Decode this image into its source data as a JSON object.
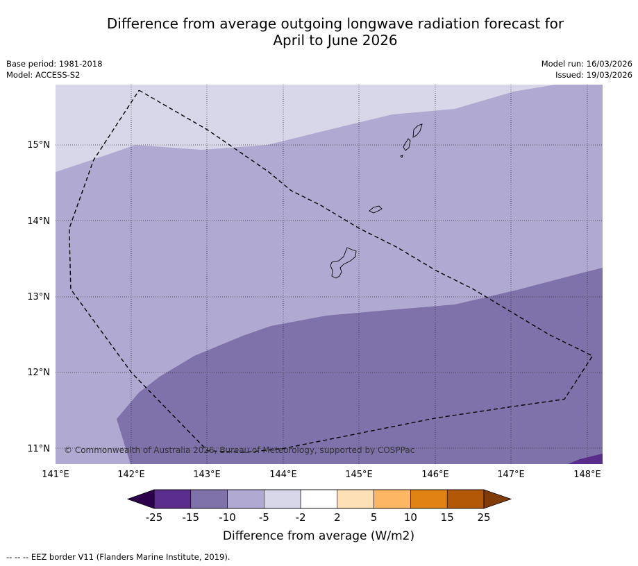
{
  "title": {
    "line1": "Difference from average outgoing longwave radiation forecast for",
    "line2": "April to June 2026"
  },
  "meta": {
    "base_period": "Base period: 1981-2018",
    "model": "Model: ACCESS-S2",
    "model_run": "Model run: 16/03/2026",
    "issued": "Issued: 19/03/2026"
  },
  "map": {
    "lon_labels": [
      "141°E",
      "142°E",
      "143°E",
      "144°E",
      "145°E",
      "146°E",
      "147°E",
      "148°E"
    ],
    "lat_labels": [
      "15°N",
      "14°N",
      "13°N",
      "12°N",
      "11°N"
    ],
    "lon_range": [
      141.0,
      148.2
    ],
    "lat_range": [
      10.8,
      15.8
    ],
    "copyright": "© Commonwealth of Australia 2026, Bureau of Meteorology, supported by COSPPac",
    "zones": [
      {
        "name": "-5 to -2",
        "color": "#d7d7e9"
      },
      {
        "name": "-10 to -5",
        "color": "#b0a9d1"
      },
      {
        "name": "-15 to -10",
        "color": "#7f71aa"
      },
      {
        "name": "-25 to -15",
        "color": "#5a2d8c"
      }
    ],
    "eez_border": [
      [
        142.1,
        15.72
      ],
      [
        143.0,
        15.2
      ],
      [
        143.8,
        14.65
      ],
      [
        144.1,
        14.4
      ],
      [
        144.5,
        14.2
      ],
      [
        145.0,
        13.9
      ],
      [
        145.5,
        13.65
      ],
      [
        146.0,
        13.35
      ],
      [
        146.5,
        13.1
      ],
      [
        147.0,
        12.8
      ],
      [
        147.5,
        12.5
      ],
      [
        148.07,
        12.22
      ],
      [
        147.7,
        11.65
      ],
      [
        147.0,
        11.55
      ],
      [
        146.0,
        11.4
      ],
      [
        145.0,
        11.2
      ],
      [
        144.0,
        11.0
      ],
      [
        143.5,
        10.95
      ],
      [
        143.0,
        10.97
      ],
      [
        142.0,
        12.0
      ],
      [
        141.2,
        13.1
      ],
      [
        141.18,
        13.9
      ],
      [
        141.5,
        14.8
      ],
      [
        142.1,
        15.72
      ]
    ]
  },
  "colorbar": {
    "labels": [
      "-25",
      "-15",
      "-10",
      "-5",
      "-2",
      "2",
      "5",
      "10",
      "15",
      "25"
    ],
    "colors": [
      "#5a2d8c",
      "#7f71aa",
      "#b0a9d1",
      "#d7d7e9",
      "#ffffff",
      "#fde0b5",
      "#fdb764",
      "#e08214",
      "#b35806"
    ],
    "under_color": "#2d004b",
    "over_color": "#7f3b08",
    "label": "Difference from average (W/m2)"
  },
  "footnote": "--  --  -- EEZ border V11 (Flanders Marine Institute, 2019)."
}
